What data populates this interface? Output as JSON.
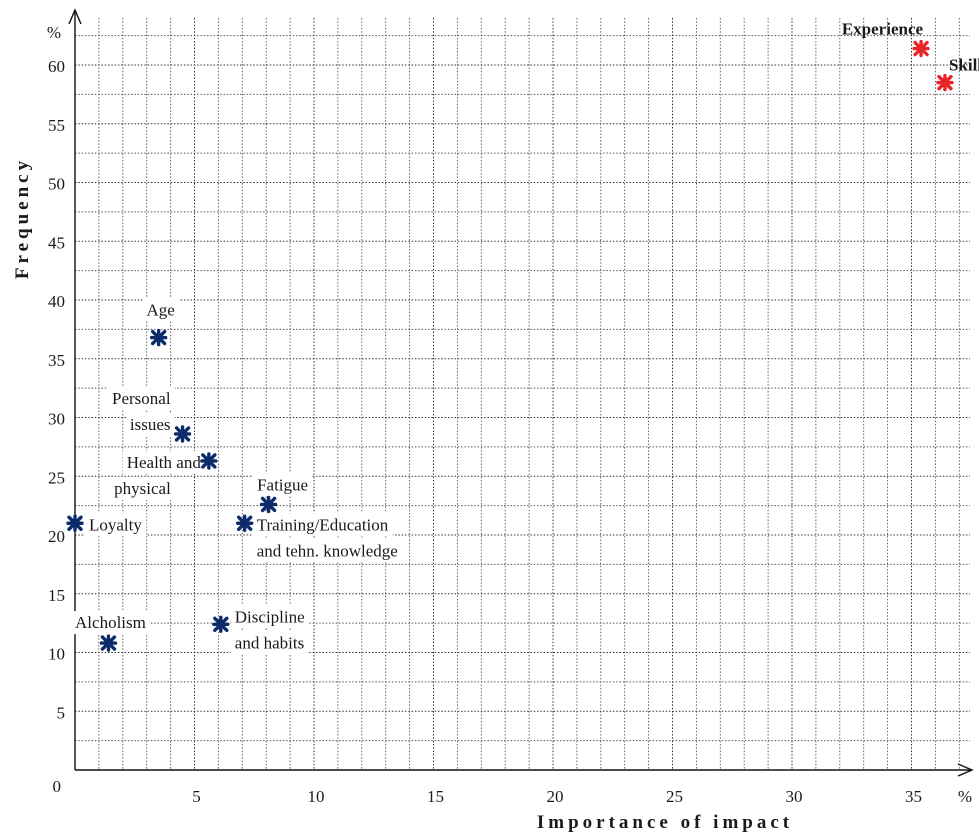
{
  "chart_data": {
    "type": "scatter",
    "xlabel": "Importance of impact",
    "ylabel": "Frequency",
    "x_unit": "%",
    "y_unit": "%",
    "origin_label": "0",
    "xlim": [
      0,
      38
    ],
    "ylim": [
      0,
      64
    ],
    "x_ticks": [
      5,
      10,
      15,
      20,
      25,
      30,
      35
    ],
    "y_ticks": [
      5,
      10,
      15,
      20,
      25,
      30,
      35,
      40,
      45,
      50,
      55,
      60
    ],
    "grid": true,
    "points": [
      {
        "label": "Experience",
        "x": 35.4,
        "y": 61.4,
        "color": "#e8262a"
      },
      {
        "label": "Skill",
        "x": 36.4,
        "y": 58.5,
        "color": "#e8262a"
      },
      {
        "label": "Age",
        "x": 3.5,
        "y": 36.8,
        "color": "#0d2a6b"
      },
      {
        "label": "Personal issues",
        "x": 4.5,
        "y": 28.6,
        "color": "#0d2a6b"
      },
      {
        "label": "Health and physical",
        "x": 5.6,
        "y": 26.3,
        "color": "#0d2a6b"
      },
      {
        "label": "Fatigue",
        "x": 8.1,
        "y": 22.6,
        "color": "#0d2a6b"
      },
      {
        "label": "Training/Education and tehn. knowledge",
        "x": 7.1,
        "y": 21.0,
        "color": "#0d2a6b"
      },
      {
        "label": "Loyalty",
        "x": 0.0,
        "y": 21.0,
        "color": "#0d2a6b"
      },
      {
        "label": "Alcholism",
        "x": 1.4,
        "y": 10.8,
        "color": "#0d2a6b"
      },
      {
        "label": "Discipline and habits",
        "x": 6.1,
        "y": 12.4,
        "color": "#0d2a6b"
      }
    ]
  }
}
